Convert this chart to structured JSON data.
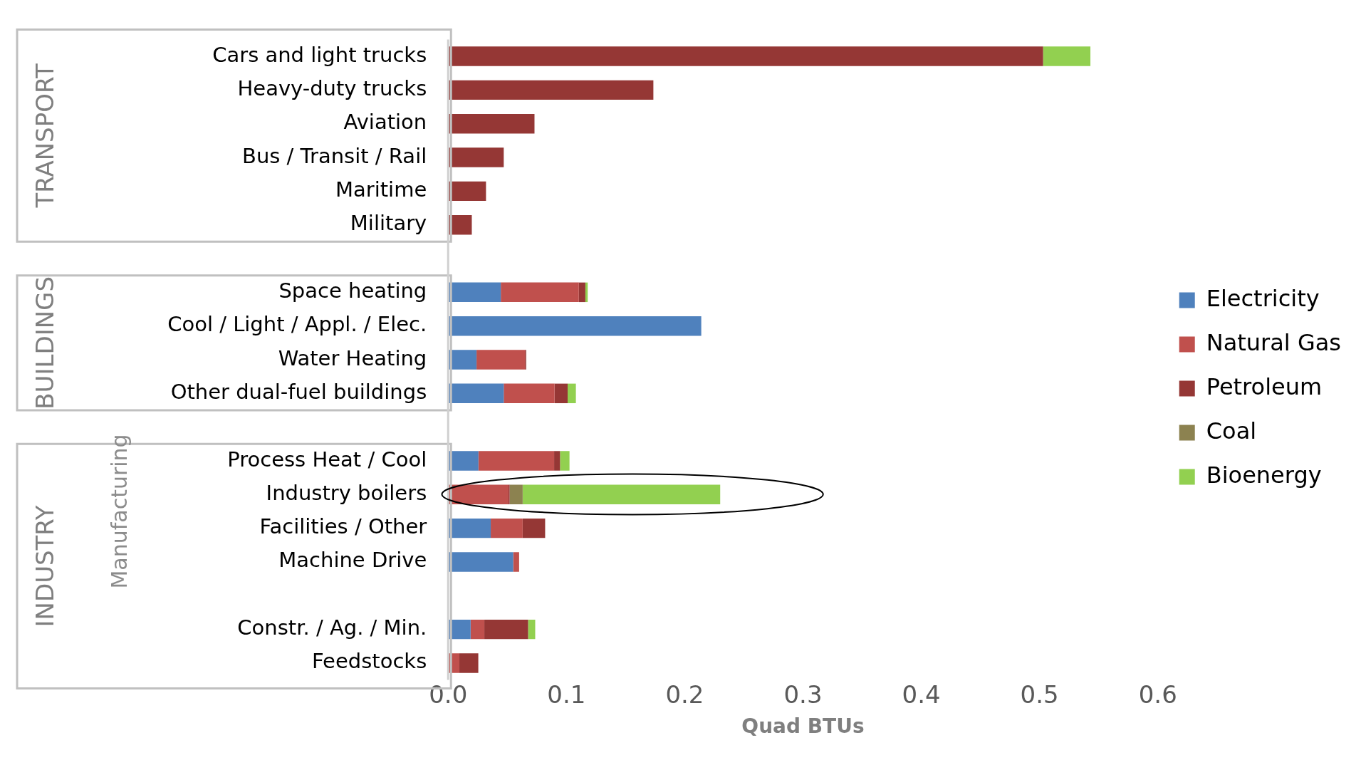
{
  "chart_data": {
    "type": "bar",
    "orientation": "horizontal",
    "stacked": true,
    "xlabel": "Quad BTUs",
    "categories": [
      "Cars and light trucks",
      "Heavy-duty trucks",
      "Aviation",
      "Bus / Transit / Rail",
      "Maritime",
      "Military",
      null,
      "Space heating",
      "Cool / Light / Appl. / Elec.",
      "Water Heating",
      "Other dual-fuel buildings",
      null,
      "Process Heat / Cool",
      "Industry boilers",
      "Facilities / Other",
      "Machine Drive",
      null,
      "Constr. / Ag. / Min.",
      "Feedstocks"
    ],
    "series": [
      {
        "name": "Electricity",
        "color": "#4f81bd",
        "values": [
          null,
          null,
          null,
          null,
          null,
          null,
          null,
          0.0445,
          0.214,
          0.024,
          0.047,
          null,
          0.0256,
          null,
          0.036,
          0.055,
          null,
          0.019,
          null
        ]
      },
      {
        "name": "Natural Gas",
        "color": "#c0504d",
        "values": [
          null,
          null,
          null,
          null,
          null,
          null,
          null,
          0.066,
          null,
          0.041,
          0.043,
          null,
          0.064,
          0.051,
          0.027,
          0.005,
          null,
          0.0116,
          0.0095
        ]
      },
      {
        "name": "Petroleum",
        "color": "#953735",
        "values": [
          0.503,
          0.1735,
          0.073,
          0.047,
          0.032,
          0.02,
          null,
          0.0055,
          null,
          0.001,
          0.011,
          null,
          0.005,
          0.001,
          0.019,
          null,
          null,
          0.037,
          0.016
        ]
      },
      {
        "name": "Coal",
        "color": "#8c8250",
        "values": [
          null,
          null,
          null,
          null,
          null,
          null,
          null,
          null,
          null,
          null,
          null,
          null,
          null,
          0.011,
          null,
          null,
          null,
          null,
          null
        ]
      },
      {
        "name": "Bioenergy",
        "color": "#92d050",
        "values": [
          0.04,
          null,
          null,
          null,
          null,
          null,
          null,
          0.002,
          null,
          null,
          0.007,
          null,
          0.008,
          0.167,
          null,
          null,
          null,
          0.006,
          null
        ]
      }
    ],
    "xlim": [
      0,
      0.6
    ],
    "xticks": [
      {
        "value": 0,
        "label": "0.0"
      },
      {
        "value": 0.1,
        "label": "0.1"
      },
      {
        "value": 0.2,
        "label": "0.2"
      },
      {
        "value": 0.3,
        "label": "0.3"
      },
      {
        "value": 0.4,
        "label": "0.4"
      },
      {
        "value": 0.5,
        "label": "0.5"
      },
      {
        "value": 0.6,
        "label": "0.6"
      }
    ],
    "grid": false,
    "legend": "right",
    "annotations": [
      "TRANSPORT",
      "BUILDINGS",
      "INDUSTRY",
      "Manufacturing"
    ]
  }
}
